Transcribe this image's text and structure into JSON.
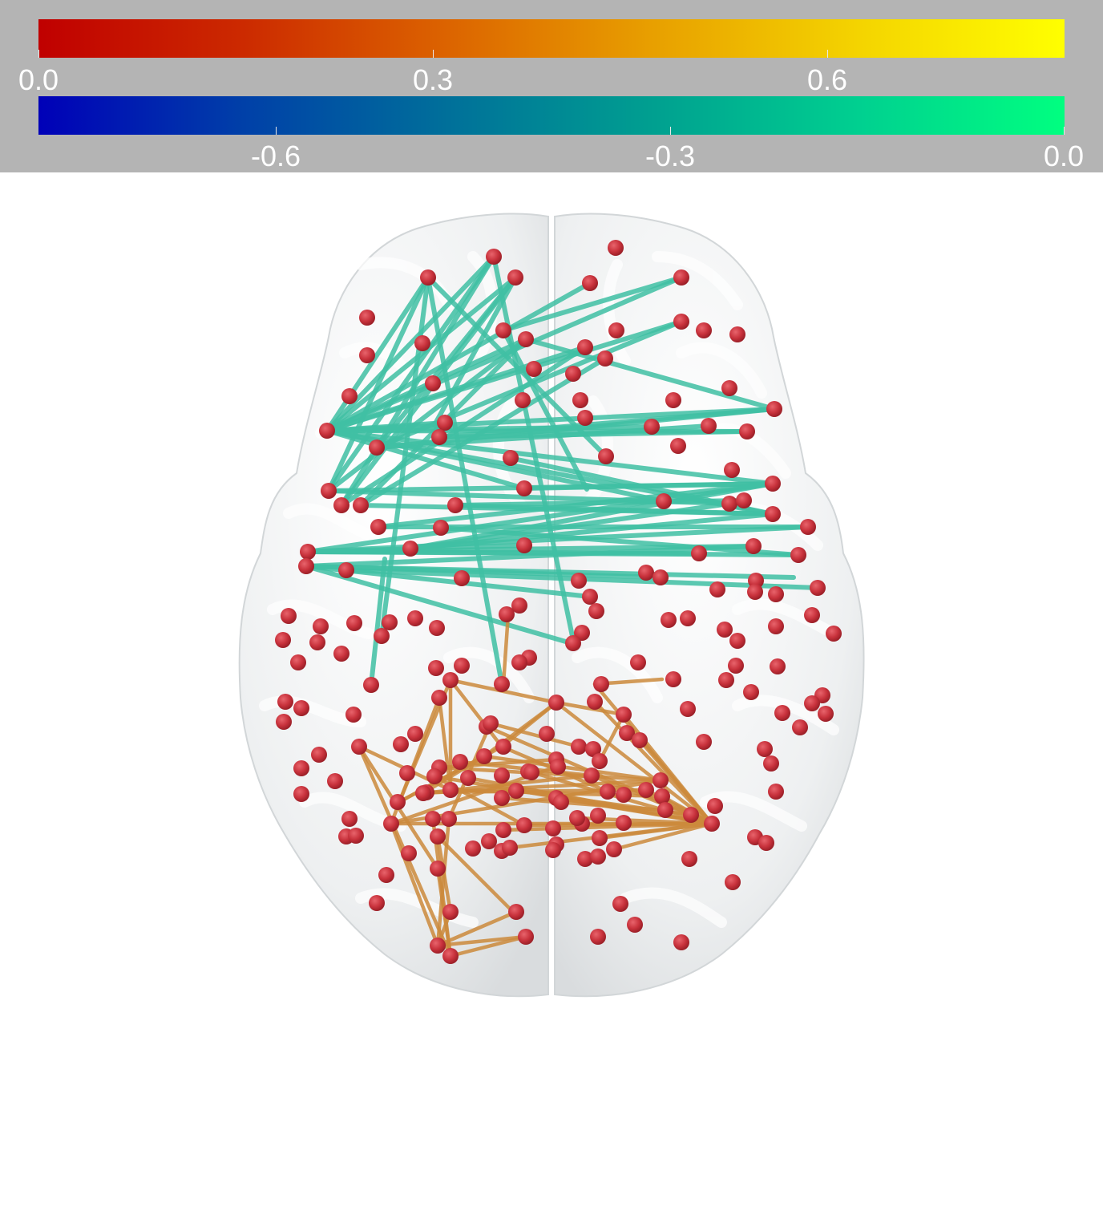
{
  "colorbars": {
    "positive": {
      "colors": [
        "#c00000",
        "#cc2a00",
        "#dc6400",
        "#e8a000",
        "#f4d400",
        "#ffff00"
      ],
      "ticks": [
        {
          "value": 0.0,
          "label": "0.0"
        },
        {
          "value": 0.3,
          "label": "0.3"
        },
        {
          "value": 0.6,
          "label": "0.6"
        }
      ],
      "range": [
        0.0,
        0.78
      ]
    },
    "negative": {
      "colors": [
        "#0000b8",
        "#0040a8",
        "#00709a",
        "#00a090",
        "#00d090",
        "#00ff80"
      ],
      "ticks": [
        {
          "value": -0.6,
          "label": "-0.6"
        },
        {
          "value": -0.3,
          "label": "-0.3"
        },
        {
          "value": 0.0,
          "label": "0.0"
        }
      ],
      "range": [
        -0.78,
        0.0
      ]
    }
  },
  "panel_color": "#b4b4b4",
  "brain": {
    "surface_color": "#eceeef",
    "node_color": "#c8323c",
    "negative_edge_color": "#40c0a4",
    "positive_edge_color": "#cc8a3c"
  }
}
